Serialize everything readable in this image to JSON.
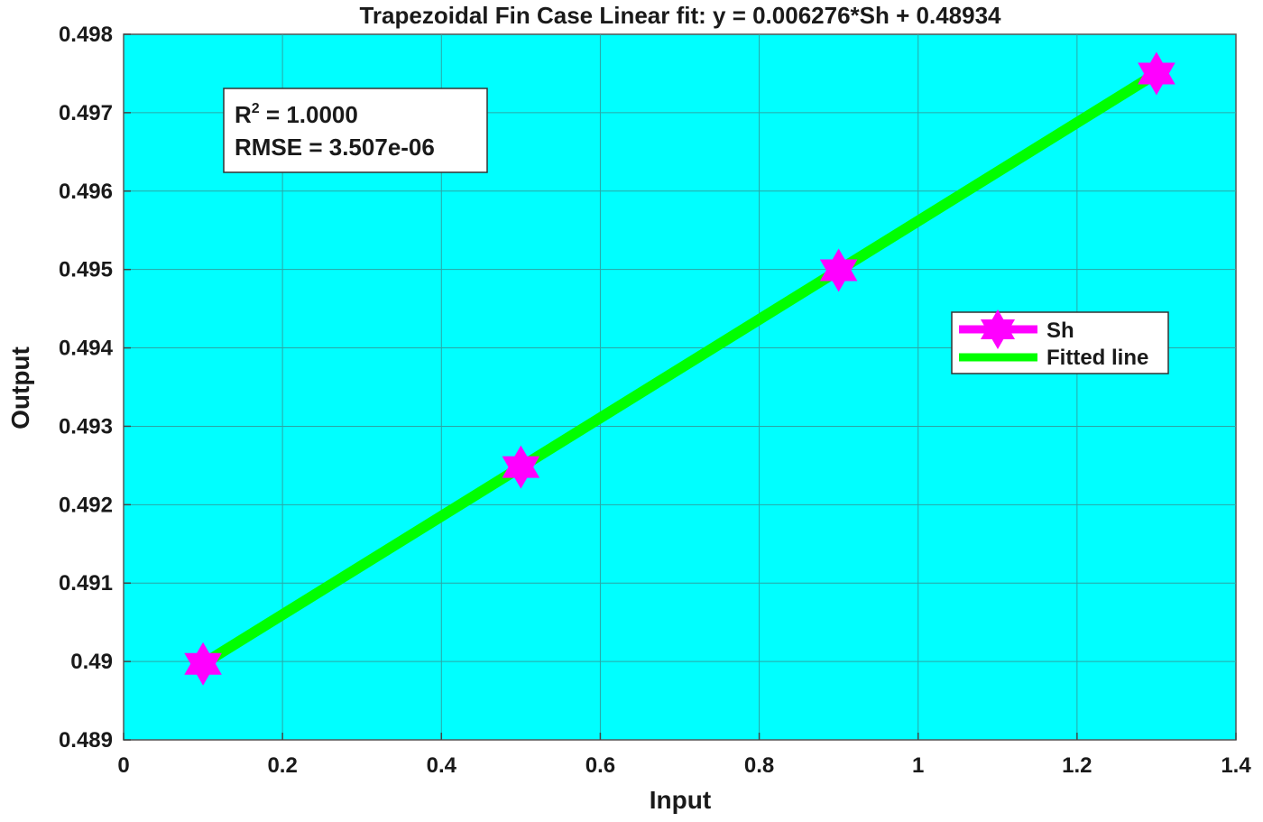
{
  "chart_data": {
    "type": "scatter",
    "title": "Trapezoidal Fin Case Linear fit: y = 0.006276*Sh + 0.48934",
    "xlabel": "Input",
    "ylabel": "Output",
    "xlim": [
      0,
      1.4
    ],
    "ylim": [
      0.489,
      0.498
    ],
    "x_ticks": [
      "0",
      "0.2",
      "0.4",
      "0.6",
      "0.8",
      "1",
      "1.2",
      "1.4"
    ],
    "y_ticks": [
      "0.489",
      "0.49",
      "0.491",
      "0.492",
      "0.493",
      "0.494",
      "0.495",
      "0.496",
      "0.497",
      "0.498"
    ],
    "grid": true,
    "background_color": "#00ffff",
    "series": [
      {
        "name": "Sh",
        "kind": "markers",
        "marker": "hexagram",
        "color": "#ff00ff",
        "x": [
          0.1,
          0.5,
          0.9,
          1.3
        ],
        "y": [
          0.48997,
          0.49248,
          0.49499,
          0.4975
        ]
      },
      {
        "name": "Fitted line",
        "kind": "line",
        "color": "#00ff00",
        "x": [
          0.1,
          1.3
        ],
        "y": [
          0.48997,
          0.4975
        ]
      }
    ],
    "annotation": {
      "r2_prefix": "R",
      "r2_sup": "2",
      "r2_text": " =  1.0000",
      "rmse_text": "RMSE  =  3.507e-06",
      "position": "top-left"
    },
    "legend": {
      "position": "right"
    }
  }
}
